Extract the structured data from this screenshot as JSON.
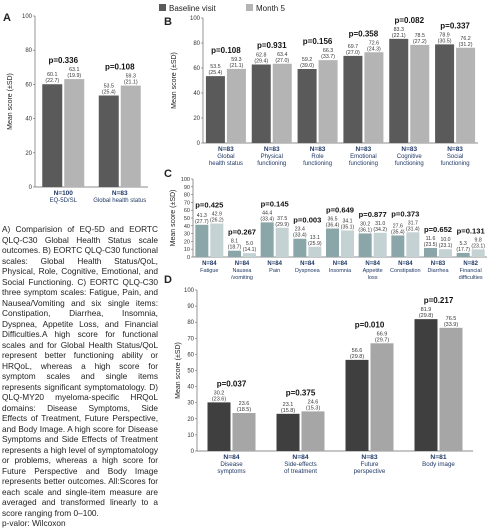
{
  "legend": {
    "baseline": "Baseline visit",
    "month5": "Month 5"
  },
  "colors": {
    "baseline": "#5a5a5a",
    "month5": "#b4b4b4",
    "nlabel": "#1f3864",
    "panelD_baseline": "#3f3f3f",
    "panelD_month5": "#a6a6a6",
    "panelC_baseline": "#8aa6a9",
    "panelC_month5": "#c5d2d4"
  },
  "caption": "A) Comparision of EQ-5D and EORTC QLQ-C30 Global Health Status scale outcomes. B) EORTC QLQ-C30 functional scales: Global Health Status/QoL, Physical, Role, Cognitive, Emotional, and Social Functioning. C) EORTC QLQ-C30 three symptom scales: Fatigue, Pain, and Nausea/Vomiting and six single items: Constipation, Diarrhea, Insomnia, Dyspnea, Appetite Loss, and Financial Difficulties.A high score for functional scales and for Global Health Status/QoL represent better functioning ability or HRQoL, whereas a high score for symptom scales and single items represents significant symptomatology. D) QLQ-MY20 myeloma-specific HRQoL domains: Disease Symptoms, Side Effects of Treatment, Future Perspective, and Body Image. A high score for Disease Symptoms and Side Effects of Treatment represents a high level of symptomatology or problems, whereas a high score for Future Perspective and Body Image represents better outcomes. All:Scores for each scale and single-item measure are averaged and transformed linearly to a score ranging from 0–100.\np-valor: Wilcoxon",
  "chart_data": [
    {
      "panel": "A",
      "type": "bar",
      "ylabel": "Mean score (±SD)",
      "ylim": [
        0,
        100
      ],
      "yticks": [
        0,
        20,
        40,
        60,
        80,
        100
      ],
      "groups": [
        {
          "n": "N=100",
          "label": "EQ-5D/SL",
          "p": "p=0.336",
          "baseline": {
            "v": 60.1,
            "t1": "60.1",
            "t2": "(22.7)"
          },
          "month5": {
            "v": 63.1,
            "t1": "63.1",
            "t2": "(19.9)"
          }
        },
        {
          "n": "N=83",
          "label": "Global health status",
          "p": "p=0.108",
          "baseline": {
            "v": 53.5,
            "t1": "53.5",
            "t2": "(25.4)"
          },
          "month5": {
            "v": 59.3,
            "t1": "59.3",
            "t2": "(21.1)"
          }
        }
      ]
    },
    {
      "panel": "B",
      "type": "bar",
      "ylabel": "Mean score (±SD)",
      "ylim": [
        0,
        100
      ],
      "yticks": [
        0,
        20,
        40,
        60,
        80,
        100
      ],
      "groups": [
        {
          "n": "N=83",
          "label": "Global",
          "label2": "health status",
          "p": "p=0.108",
          "baseline": {
            "v": 53.5,
            "t1": "53.5",
            "t2": "(25.4)"
          },
          "month5": {
            "v": 59.3,
            "t1": "59.3",
            "t2": "(21.1)"
          }
        },
        {
          "n": "N=83",
          "label": "Physical",
          "label2": "functioning",
          "p": "p=0.931",
          "baseline": {
            "v": 62.8,
            "t1": "62.8",
            "t2": "(29.4)"
          },
          "month5": {
            "v": 63.4,
            "t1": "63.4",
            "t2": "(27.0)"
          }
        },
        {
          "n": "N=83",
          "label": "Role",
          "label2": "functioning",
          "p": "p=0.156",
          "baseline": {
            "v": 59.2,
            "t1": "59.2",
            "t2": "(39.0)"
          },
          "month5": {
            "v": 66.3,
            "t1": "66.3",
            "t2": "(33.7)"
          }
        },
        {
          "n": "N=83",
          "label": "Emotional",
          "label2": "functioning",
          "p": "p=0.358",
          "baseline": {
            "v": 69.7,
            "t1": "69.7",
            "t2": "(27.0)"
          },
          "month5": {
            "v": 72.6,
            "t1": "72.6",
            "t2": "(24.3)"
          }
        },
        {
          "n": "N=83",
          "label": "Cognitive",
          "label2": "functioning",
          "p": "p=0.082",
          "baseline": {
            "v": 83.3,
            "t1": "83.3",
            "t2": "(22.1)"
          },
          "month5": {
            "v": 78.5,
            "t1": "78.5",
            "t2": "(27.2)"
          }
        },
        {
          "n": "N=83",
          "label": "Social",
          "label2": "functioning",
          "p": "p=0.337",
          "baseline": {
            "v": 78.9,
            "t1": "78.9",
            "t2": "(30.5)"
          },
          "month5": {
            "v": 76.2,
            "t1": "76.2",
            "t2": "(31.2)"
          }
        }
      ]
    },
    {
      "panel": "C",
      "type": "bar",
      "ylabel": "Mean score (±SD)",
      "ylim": [
        0,
        100
      ],
      "yticks": [
        0,
        10,
        20,
        30,
        40,
        50,
        60,
        70,
        80,
        90,
        100
      ],
      "groups": [
        {
          "n": "N=84",
          "label": "Fatigue",
          "label2": "",
          "p": "p=0.425",
          "baseline": {
            "v": 41.3,
            "t1": "41.3",
            "t2": "(27.7)"
          },
          "month5": {
            "v": 42.9,
            "t1": "42.9",
            "t2": "(26.2)"
          }
        },
        {
          "n": "N=84",
          "label": "Nausea",
          "label2": "/vomiting",
          "p": "p=0.267",
          "baseline": {
            "v": 8.1,
            "t1": "8.1",
            "t2": "(18.7)"
          },
          "month5": {
            "v": 5.0,
            "t1": "5.0",
            "t2": "(14.1)"
          }
        },
        {
          "n": "N=84",
          "label": "Pain",
          "label2": "",
          "p": "p=0.145",
          "baseline": {
            "v": 44.4,
            "t1": "44.4",
            "t2": "(33.4)"
          },
          "month5": {
            "v": 37.5,
            "t1": "37.5",
            "t2": "(29.9)"
          }
        },
        {
          "n": "N=84",
          "label": "Dyspnoea",
          "label2": "",
          "p": "p=0.003",
          "baseline": {
            "v": 23.4,
            "t1": "23.4",
            "t2": "(33.4)"
          },
          "month5": {
            "v": 13.1,
            "t1": "13.1",
            "t2": "(25.9)"
          }
        },
        {
          "n": "N=84",
          "label": "Insomnia",
          "label2": "",
          "p": "p=0.649",
          "baseline": {
            "v": 36.5,
            "t1": "36.5",
            "t2": "(36.4)"
          },
          "month5": {
            "v": 34.1,
            "t1": "34.1",
            "t2": "(35.1)"
          }
        },
        {
          "n": "N=84",
          "label": "Appetite",
          "label2": "loss",
          "p": "p=0.877",
          "baseline": {
            "v": 30.2,
            "t1": "30.2",
            "t2": "(36.1)"
          },
          "month5": {
            "v": 31.0,
            "t1": "31.0",
            "t2": "(34.2)"
          }
        },
        {
          "n": "N=84",
          "label": "Constipation",
          "label2": "",
          "p": "p=0.373",
          "baseline": {
            "v": 27.6,
            "t1": "27.6",
            "t2": "(35.4)"
          },
          "month5": {
            "v": 31.7,
            "t1": "31.7",
            "t2": "(31.4)"
          }
        },
        {
          "n": "N=83",
          "label": "Diarrhea",
          "label2": "",
          "p": "p=0.652",
          "baseline": {
            "v": 11.6,
            "t1": "11.6",
            "t2": "(23.5)"
          },
          "month5": {
            "v": 10.0,
            "t1": "10.0",
            "t2": "(23.1)"
          }
        },
        {
          "n": "N=82",
          "label": "Financial",
          "label2": "difficulties",
          "p": "p=0.131",
          "baseline": {
            "v": 5.3,
            "t1": "5.3",
            "t2": "(17.7)"
          },
          "month5": {
            "v": 9.8,
            "t1": "9.8",
            "t2": "(23.1)"
          }
        }
      ]
    },
    {
      "panel": "D",
      "type": "bar",
      "ylabel": "Mean score (±SD)",
      "ylim": [
        0,
        100
      ],
      "yticks": [
        0,
        10,
        20,
        30,
        40,
        50,
        60,
        70,
        80,
        90,
        100
      ],
      "groups": [
        {
          "n": "N=84",
          "label": "Disease",
          "label2": "symptoms",
          "p": "p=0.037",
          "baseline": {
            "v": 30.2,
            "t1": "30.2",
            "t2": "(23.6)"
          },
          "month5": {
            "v": 23.6,
            "t1": "23.6",
            "t2": "(18.5)"
          }
        },
        {
          "n": "N=84",
          "label": "Side-effects",
          "label2": "of treatment",
          "p": "p=0.375",
          "baseline": {
            "v": 23.1,
            "t1": "23.1",
            "t2": "(15.8)"
          },
          "month5": {
            "v": 24.6,
            "t1": "24.6",
            "t2": "(15.3)"
          }
        },
        {
          "n": "N=83",
          "label": "Future",
          "label2": "perspective",
          "p": "p=0.010",
          "baseline": {
            "v": 56.6,
            "t1": "56.6",
            "t2": "(29.8)"
          },
          "month5": {
            "v": 66.9,
            "t1": "66.9",
            "t2": "(29.7)"
          }
        },
        {
          "n": "N=81",
          "label": "Body image",
          "label2": "",
          "p": "p=0.217",
          "baseline": {
            "v": 81.9,
            "t1": "81.9",
            "t2": "(29.8)"
          },
          "month5": {
            "v": 76.5,
            "t1": "76.5",
            "t2": "(33.9)"
          }
        }
      ]
    }
  ],
  "panel_letters": [
    "A",
    "B",
    "C",
    "D"
  ]
}
